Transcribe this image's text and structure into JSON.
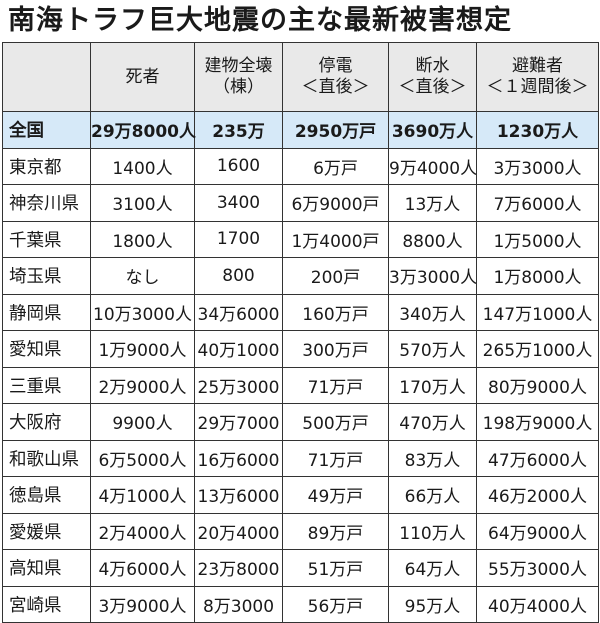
{
  "title": "南海トラフ巨大地震の主な最新被害想定",
  "columns": [
    {
      "lines": [
        ""
      ]
    },
    {
      "lines": [
        "死者"
      ]
    },
    {
      "lines": [
        "建物全壊",
        "（棟）"
      ]
    },
    {
      "lines": [
        "停電",
        "＜直後＞"
      ]
    },
    {
      "lines": [
        "断水",
        "＜直後＞"
      ]
    },
    {
      "lines": [
        "避難者",
        "＜１週間後＞"
      ]
    }
  ],
  "rows": [
    {
      "pref": "全国",
      "deaths": "29万8000人",
      "buildings": "235万",
      "power": "2950万戸",
      "water": "3690万人",
      "evacuees": "1230万人",
      "highlight": true
    },
    {
      "pref": "東京都",
      "deaths": "1400人",
      "buildings": "1600",
      "power": "6万戸",
      "water": "9万4000人",
      "evacuees": "3万3000人"
    },
    {
      "pref": "神奈川県",
      "deaths": "3100人",
      "buildings": "3400",
      "power": "6万9000戸",
      "water": "13万人",
      "evacuees": "7万6000人"
    },
    {
      "pref": "千葉県",
      "deaths": "1800人",
      "buildings": "1700",
      "power": "1万4000戸",
      "water": "8800人",
      "evacuees": "1万5000人"
    },
    {
      "pref": "埼玉県",
      "deaths": "なし",
      "buildings": "800",
      "power": "200戸",
      "water": "3万3000人",
      "evacuees": "1万8000人"
    },
    {
      "pref": "静岡県",
      "deaths": "10万3000人",
      "buildings": "34万6000",
      "power": "160万戸",
      "water": "340万人",
      "evacuees": "147万1000人"
    },
    {
      "pref": "愛知県",
      "deaths": "1万9000人",
      "buildings": "40万1000",
      "power": "300万戸",
      "water": "570万人",
      "evacuees": "265万1000人"
    },
    {
      "pref": "三重県",
      "deaths": "2万9000人",
      "buildings": "25万3000",
      "power": "71万戸",
      "water": "170万人",
      "evacuees": "80万9000人"
    },
    {
      "pref": "大阪府",
      "deaths": "9900人",
      "buildings": "29万7000",
      "power": "500万戸",
      "water": "470万人",
      "evacuees": "198万9000人"
    },
    {
      "pref": "和歌山県",
      "deaths": "6万5000人",
      "buildings": "16万6000",
      "power": "71万戸",
      "water": "83万人",
      "evacuees": "47万6000人"
    },
    {
      "pref": "徳島県",
      "deaths": "4万1000人",
      "buildings": "13万6000",
      "power": "49万戸",
      "water": "66万人",
      "evacuees": "46万2000人"
    },
    {
      "pref": "愛媛県",
      "deaths": "2万4000人",
      "buildings": "20万4000",
      "power": "89万戸",
      "water": "110万人",
      "evacuees": "64万9000人"
    },
    {
      "pref": "高知県",
      "deaths": "4万6000人",
      "buildings": "23万8000",
      "power": "51万戸",
      "water": "64万人",
      "evacuees": "55万3000人"
    },
    {
      "pref": "宮崎県",
      "deaths": "3万9000人",
      "buildings": "8万3000",
      "power": "56万戸",
      "water": "95万人",
      "evacuees": "40万4000人"
    }
  ],
  "colors": {
    "header_bg": "#e9e9e9",
    "national_row_bg": "#d6e9f8",
    "border": "#333333"
  }
}
